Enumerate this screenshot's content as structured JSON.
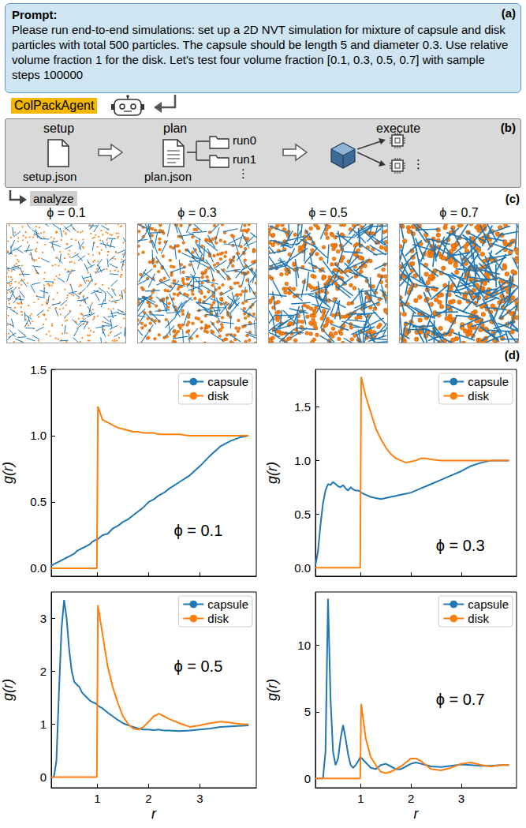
{
  "figure": {
    "a": {
      "label": "(a)",
      "heading": "Prompt:",
      "text": "Please run end-to-end simulations: set up a 2D NVT simulation for mixture of capsule and disk particles with total 500 particles. The capsule should be length 5 and diameter 0.3. Use relative volume fraction 1 for the disk. Let's test four volume fraction [0.1, 0.3, 0.5, 0.7] with sample steps 100000"
    },
    "agent": "ColPackAgent",
    "b": {
      "label": "(b)",
      "steps": [
        {
          "title": "setup",
          "file": "setup.json"
        },
        {
          "title": "plan",
          "file": "plan.json",
          "runs": [
            "run0",
            "run1",
            "⋮"
          ]
        },
        {
          "title": "execute",
          "more": "⋮"
        }
      ]
    },
    "c": {
      "label": "(c)",
      "action": "analyze",
      "snapshots": [
        {
          "label": "ϕ = 0.1",
          "phi": 0.1
        },
        {
          "label": "ϕ = 0.3",
          "phi": 0.3
        },
        {
          "label": "ϕ = 0.5",
          "phi": 0.5
        },
        {
          "label": "ϕ = 0.7",
          "phi": 0.7
        }
      ]
    },
    "d": {
      "label": "(d)"
    }
  },
  "chart_data": [
    {
      "type": "line",
      "annotation": "ϕ = 0.1",
      "y_label": "g(r)",
      "tick_labels": "y",
      "legend": "upper right",
      "x": [
        0.1,
        0.15,
        0.2,
        0.25,
        0.3,
        0.35,
        0.4,
        0.45,
        0.5,
        0.55,
        0.6,
        0.65,
        0.7,
        0.75,
        0.8,
        0.85,
        0.9,
        0.95,
        0.99,
        1.01,
        1.1,
        1.2,
        1.3,
        1.4,
        1.5,
        1.6,
        1.7,
        1.8,
        1.9,
        2,
        2.1,
        2.2,
        2.3,
        2.4,
        2.6,
        2.8,
        3,
        3.2,
        3.4,
        3.6,
        3.8,
        3.95
      ],
      "xlim": [
        0.1,
        4.1
      ],
      "xticks": [
        1,
        2,
        3
      ],
      "ylim": [
        -0.06,
        1.5
      ],
      "yticks": [
        {
          "value": 0,
          "label": "0.0"
        },
        0.5,
        {
          "value": 1,
          "label": "1.0"
        },
        1.5
      ],
      "series": [
        {
          "name": "capsule",
          "color": "#1f77b4",
          "values": [
            0.02,
            0.03,
            0.04,
            0.05,
            0.06,
            0.07,
            0.08,
            0.09,
            0.1,
            0.11,
            0.13,
            0.14,
            0.15,
            0.16,
            0.17,
            0.18,
            0.2,
            0.21,
            0.22,
            0.22,
            0.25,
            0.26,
            0.3,
            0.32,
            0.35,
            0.37,
            0.4,
            0.43,
            0.46,
            0.5,
            0.52,
            0.55,
            0.57,
            0.6,
            0.65,
            0.7,
            0.77,
            0.85,
            0.92,
            0.96,
            0.99,
            1.0
          ]
        },
        {
          "name": "disk",
          "color": "#ff7f0e",
          "values": [
            0,
            0,
            0,
            0,
            0,
            0,
            0,
            0,
            0,
            0,
            0,
            0,
            0,
            0,
            0,
            0,
            0,
            0,
            0,
            1.22,
            1.12,
            1.1,
            1.08,
            1.06,
            1.05,
            1.04,
            1.03,
            1.03,
            1.02,
            1.02,
            1.02,
            1.01,
            1.01,
            1.01,
            1.01,
            1.0,
            1.0,
            1.0,
            1.0,
            1.0,
            1.0,
            1.0
          ]
        }
      ]
    },
    {
      "type": "line",
      "annotation": "ϕ = 0.3",
      "y_label": "g(r)",
      "tick_labels": "y",
      "legend": "upper right",
      "x": [
        0.1,
        0.15,
        0.2,
        0.25,
        0.3,
        0.35,
        0.4,
        0.45,
        0.5,
        0.55,
        0.6,
        0.65,
        0.7,
        0.75,
        0.8,
        0.85,
        0.9,
        0.95,
        0.99,
        1.01,
        1.1,
        1.2,
        1.3,
        1.4,
        1.5,
        1.6,
        1.7,
        1.8,
        1.9,
        2,
        2.1,
        2.2,
        2.3,
        2.4,
        2.6,
        2.8,
        3,
        3.2,
        3.4,
        3.6,
        3.8,
        3.95
      ],
      "xlim": [
        0.1,
        4.1
      ],
      "xticks": [
        1,
        2,
        3
      ],
      "ylim": [
        -0.08,
        1.85
      ],
      "yticks": [
        {
          "value": 0,
          "label": "0.0"
        },
        0.5,
        {
          "value": 1,
          "label": "1.0"
        },
        1.5
      ],
      "series": [
        {
          "name": "capsule",
          "color": "#1f77b4",
          "values": [
            0.02,
            0.15,
            0.4,
            0.6,
            0.72,
            0.78,
            0.77,
            0.8,
            0.78,
            0.76,
            0.75,
            0.77,
            0.74,
            0.72,
            0.75,
            0.73,
            0.72,
            0.72,
            0.71,
            0.7,
            0.68,
            0.66,
            0.65,
            0.64,
            0.65,
            0.66,
            0.67,
            0.68,
            0.69,
            0.7,
            0.72,
            0.74,
            0.76,
            0.78,
            0.82,
            0.86,
            0.9,
            0.95,
            0.98,
            1.0,
            1.0,
            1.0
          ]
        },
        {
          "name": "disk",
          "color": "#ff7f0e",
          "values": [
            0,
            0,
            0,
            0,
            0,
            0,
            0,
            0,
            0,
            0,
            0,
            0,
            0,
            0,
            0,
            0,
            0,
            0,
            0,
            1.78,
            1.6,
            1.45,
            1.3,
            1.2,
            1.12,
            1.06,
            1.02,
            1.0,
            0.98,
            0.99,
            1.0,
            1.02,
            1.02,
            1.01,
            1.0,
            1.0,
            1.0,
            1.0,
            1.0,
            1.0,
            1.0,
            1.0
          ]
        }
      ]
    },
    {
      "type": "line",
      "annotation": "ϕ = 0.5",
      "x_label": "r",
      "y_label": "g(r)",
      "legend": "upper right",
      "x": [
        0.1,
        0.15,
        0.2,
        0.25,
        0.3,
        0.35,
        0.4,
        0.45,
        0.5,
        0.55,
        0.6,
        0.65,
        0.7,
        0.75,
        0.8,
        0.85,
        0.9,
        0.95,
        0.99,
        1.01,
        1.1,
        1.2,
        1.3,
        1.4,
        1.5,
        1.6,
        1.7,
        1.8,
        1.9,
        2,
        2.1,
        2.2,
        2.3,
        2.4,
        2.6,
        2.8,
        3,
        3.2,
        3.4,
        3.6,
        3.8,
        3.95
      ],
      "xlim": [
        0.1,
        4.1
      ],
      "xticks": [
        1,
        2,
        3
      ],
      "ylim": [
        -0.2,
        3.5
      ],
      "yticks": [
        0,
        1,
        2,
        3
      ],
      "series": [
        {
          "name": "capsule",
          "color": "#1f77b4",
          "values": [
            0,
            0,
            0.3,
            1.6,
            2.8,
            3.35,
            3.0,
            2.4,
            2.0,
            1.8,
            1.75,
            1.7,
            1.6,
            1.55,
            1.5,
            1.45,
            1.42,
            1.4,
            1.38,
            1.35,
            1.3,
            1.22,
            1.15,
            1.08,
            1.02,
            0.98,
            0.95,
            0.92,
            0.9,
            0.9,
            0.89,
            0.9,
            0.88,
            0.88,
            0.87,
            0.88,
            0.9,
            0.92,
            0.95,
            0.96,
            0.97,
            0.98
          ]
        },
        {
          "name": "disk",
          "color": "#ff7f0e",
          "values": [
            0,
            0,
            0,
            0,
            0,
            0,
            0,
            0,
            0,
            0,
            0,
            0,
            0,
            0,
            0,
            0,
            0,
            0,
            0,
            3.25,
            2.7,
            2.1,
            1.7,
            1.4,
            1.15,
            1.0,
            0.92,
            0.9,
            0.95,
            1.05,
            1.15,
            1.2,
            1.15,
            1.1,
            1.02,
            0.95,
            0.98,
            1.02,
            1.05,
            1.03,
            1.0,
            1.0
          ]
        }
      ]
    },
    {
      "type": "line",
      "annotation": "ϕ = 0.7",
      "x_label": "r",
      "y_label": "g(r)",
      "legend": "upper right",
      "x": [
        0.1,
        0.15,
        0.2,
        0.25,
        0.3,
        0.35,
        0.4,
        0.45,
        0.5,
        0.55,
        0.6,
        0.65,
        0.7,
        0.75,
        0.8,
        0.85,
        0.9,
        0.95,
        0.99,
        1.01,
        1.1,
        1.2,
        1.3,
        1.4,
        1.5,
        1.6,
        1.7,
        1.8,
        1.9,
        2,
        2.1,
        2.2,
        2.3,
        2.4,
        2.6,
        2.8,
        3,
        3.2,
        3.4,
        3.6,
        3.8,
        3.95
      ],
      "xlim": [
        0.1,
        4.1
      ],
      "xticks": [
        1,
        2,
        3
      ],
      "ylim": [
        -0.7,
        14
      ],
      "yticks": [
        0,
        5,
        10
      ],
      "series": [
        {
          "name": "capsule",
          "color": "#1f77b4",
          "values": [
            0,
            0,
            0,
            0,
            2,
            13.5,
            6,
            2,
            1,
            1.5,
            3,
            4,
            3,
            1.8,
            1,
            0.8,
            1.0,
            1.3,
            1.6,
            1.55,
            1.2,
            0.8,
            0.7,
            1.0,
            1.1,
            0.9,
            0.7,
            0.7,
            0.9,
            1.1,
            1.2,
            1.1,
            1.0,
            0.9,
            0.85,
            0.95,
            1.05,
            1.0,
            0.95,
            0.95,
            1.0,
            1.0
          ]
        },
        {
          "name": "disk",
          "color": "#ff7f0e",
          "values": [
            0,
            0,
            0,
            0,
            0,
            0,
            0,
            0,
            0,
            0,
            0,
            0,
            0,
            0,
            0,
            0,
            0,
            0,
            0,
            5.6,
            3.0,
            1.6,
            1.0,
            0.5,
            0.4,
            0.5,
            0.7,
            0.9,
            1.2,
            1.5,
            1.5,
            1.3,
            1.0,
            0.7,
            0.6,
            0.8,
            1.1,
            1.2,
            1.0,
            0.9,
            1.0,
            1.0
          ]
        }
      ]
    }
  ]
}
